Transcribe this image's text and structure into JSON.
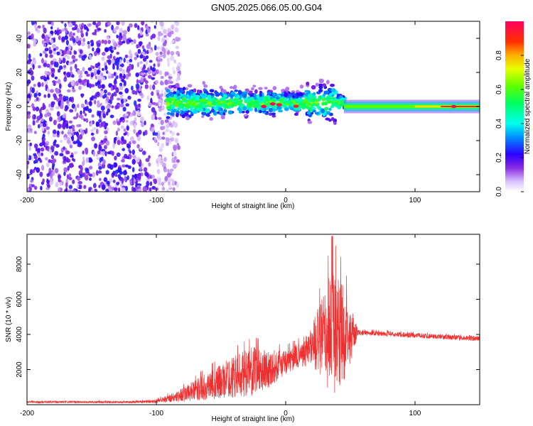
{
  "figure": {
    "title": "GN05.2025.066.05.00.G04"
  },
  "chart_data": [
    {
      "type": "heatmap",
      "xlabel": "Height of straight line (km)",
      "ylabel": "Frequency (Hz)",
      "xlim": [
        -200,
        150
      ],
      "ylim": [
        -50,
        50
      ],
      "xticks": [
        -200,
        -100,
        0,
        100
      ],
      "yticks": [
        -40,
        -20,
        0,
        20,
        40
      ],
      "colorbar": {
        "label": "Normalized spectral amplitude",
        "range": [
          0,
          1
        ],
        "ticks": [
          0.0,
          0.2,
          0.4,
          0.6,
          0.8
        ]
      },
      "bands": [
        {
          "x_from": -200,
          "x_to": -90,
          "description_level": 0.2
        },
        {
          "x_from": -90,
          "x_to": 45,
          "center_freq": 2,
          "spread": 12,
          "description_level": 0.55
        },
        {
          "x_from": 45,
          "x_to": 150,
          "center_freq": 0,
          "spread": 3,
          "description_level": 0.65
        }
      ],
      "peak_points": [
        {
          "x": -17,
          "y": 0,
          "amp": 1.0
        },
        {
          "x": -10,
          "y": 1.5,
          "amp": 1.0
        },
        {
          "x": -5,
          "y": 1.0,
          "amp": 0.95
        },
        {
          "x": 8,
          "y": 0.2,
          "amp": 0.95
        },
        {
          "x": 130,
          "y": 0,
          "amp": 1.0
        }
      ],
      "grid": false
    },
    {
      "type": "line",
      "xlabel": "Height of straight line (km)",
      "ylabel": "SNR (10 * v/v)",
      "xlim": [
        -200,
        150
      ],
      "ylim": [
        0,
        9700
      ],
      "xticks": [
        -200,
        -100,
        0,
        100
      ],
      "yticks": [
        2000,
        4000,
        6000,
        8000
      ],
      "series": [
        {
          "color": "#f03030",
          "envelope": [
            {
              "x": -200,
              "base": 150,
              "amp": 60
            },
            {
              "x": -120,
              "base": 150,
              "amp": 60
            },
            {
              "x": -100,
              "base": 200,
              "amp": 100
            },
            {
              "x": -85,
              "base": 450,
              "amp": 300
            },
            {
              "x": -70,
              "base": 800,
              "amp": 600
            },
            {
              "x": -55,
              "base": 1200,
              "amp": 900
            },
            {
              "x": -40,
              "base": 1600,
              "amp": 1200
            },
            {
              "x": -25,
              "base": 1900,
              "amp": 1400
            },
            {
              "x": -10,
              "base": 2100,
              "amp": 1000
            },
            {
              "x": 0,
              "base": 2400,
              "amp": 700
            },
            {
              "x": 10,
              "base": 2800,
              "amp": 700
            },
            {
              "x": 20,
              "base": 3400,
              "amp": 1200
            },
            {
              "x": 30,
              "base": 3900,
              "amp": 2600
            },
            {
              "x": 36,
              "base": 4200,
              "amp": 3800
            },
            {
              "x": 45,
              "base": 4100,
              "amp": 2800
            },
            {
              "x": 52,
              "base": 4000,
              "amp": 1200
            },
            {
              "x": 56,
              "base": 4100,
              "amp": 150
            },
            {
              "x": 100,
              "base": 3950,
              "amp": 140
            },
            {
              "x": 150,
              "base": 3750,
              "amp": 140
            }
          ]
        }
      ],
      "grid": false
    }
  ]
}
